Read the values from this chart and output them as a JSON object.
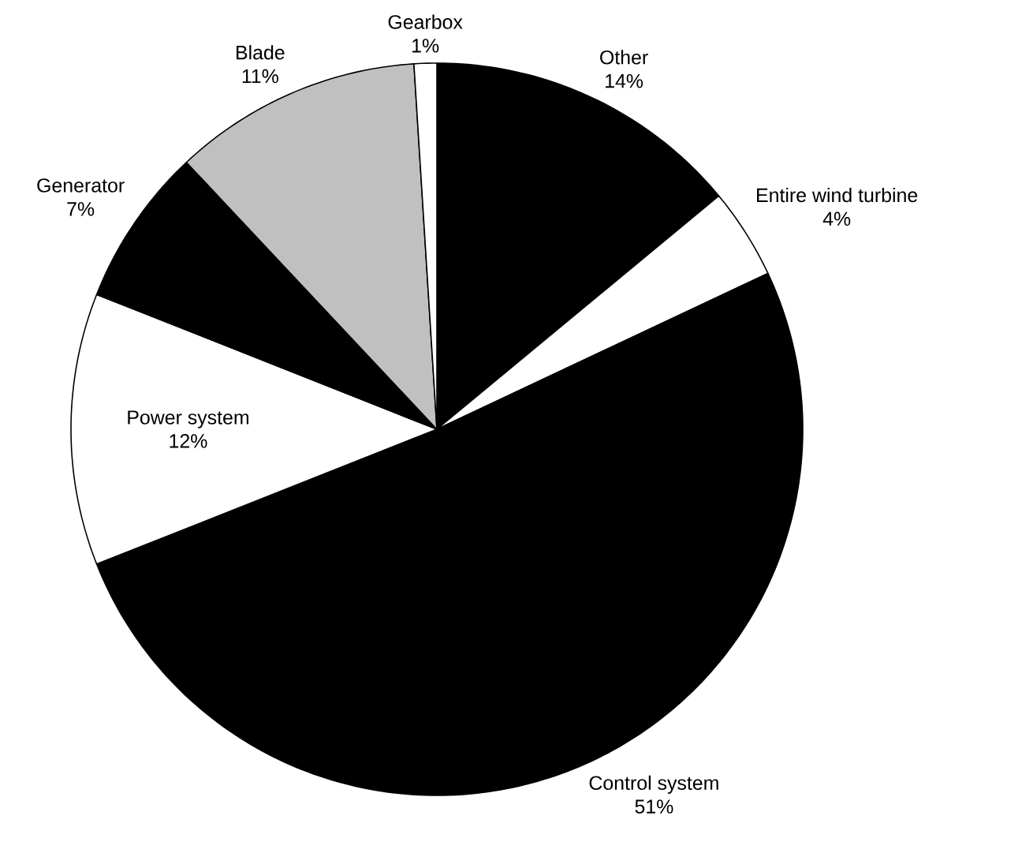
{
  "chart_data": {
    "type": "pie",
    "categories": [
      "Other",
      "Entire wind turbine",
      "Control system",
      "Power system",
      "Generator",
      "Blade",
      "Gearbox"
    ],
    "values": [
      14,
      4,
      51,
      12,
      7,
      11,
      1
    ],
    "value_labels": [
      "14%",
      "4%",
      "51%",
      "12%",
      "7%",
      "11%",
      "1%"
    ],
    "colors": [
      "#000000",
      "#ffffff",
      "#000000",
      "#ffffff",
      "#000000",
      "#c0c0c0",
      "#ffffff"
    ]
  }
}
